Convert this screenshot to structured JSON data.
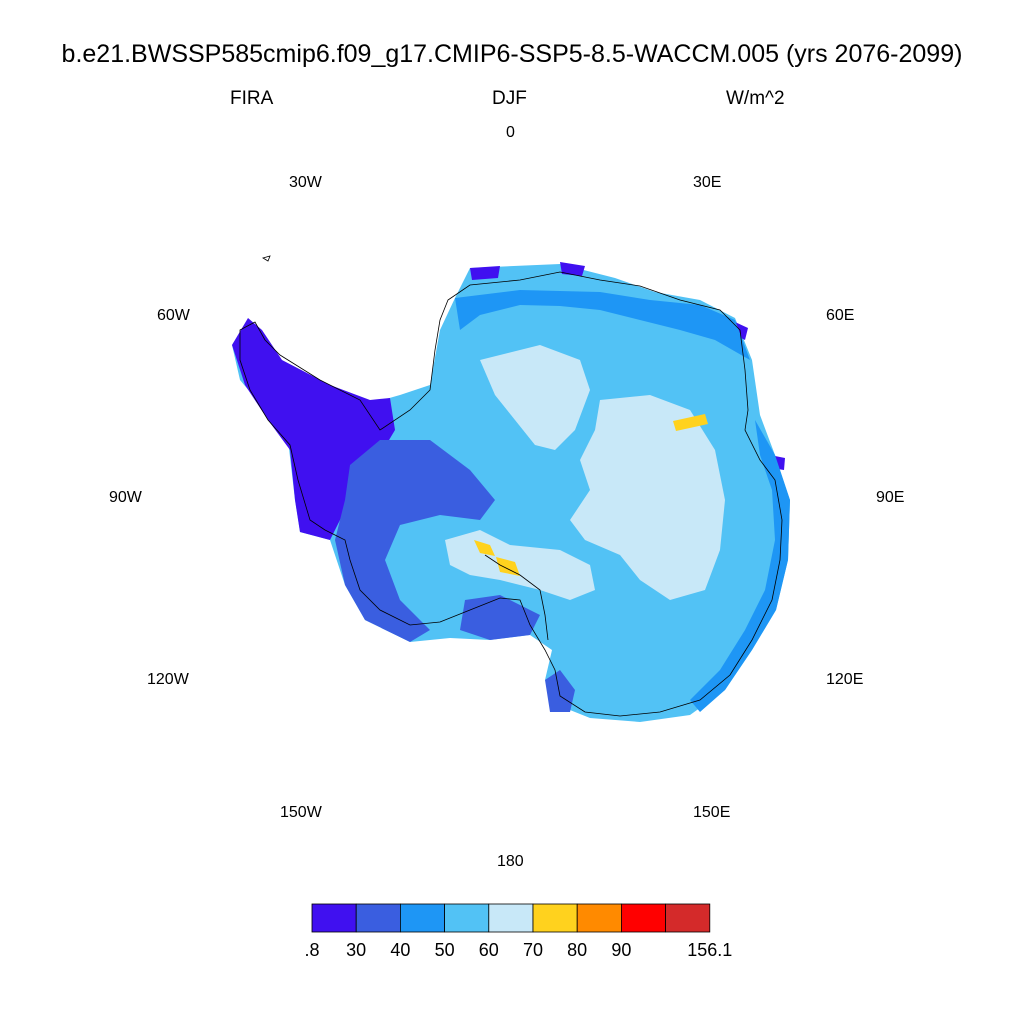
{
  "title": "b.e21.BWSSP585cmip6.f09_g17.CMIP6-SSP5-8.5-WACCM.005 (yrs 2076-2099)",
  "subtitle": {
    "left": "FIRA",
    "center": "DJF",
    "right": "W/m^2"
  },
  "longitude_labels": {
    "lon_0": "0",
    "lon_30e": "30E",
    "lon_60e": "60E",
    "lon_90e": "90E",
    "lon_120e": "120E",
    "lon_150e": "150E",
    "lon_180": "180",
    "lon_150w": "150W",
    "lon_120w": "120W",
    "lon_90w": "90W",
    "lon_60w": "60W",
    "lon_30w": "30W"
  },
  "colorbar": {
    "colors": [
      "#4010f0",
      "#3a5ee0",
      "#1e96f5",
      "#52c2f5",
      "#c8e8f8",
      "#ffd21e",
      "#ff8a00",
      "#ff0000",
      "#d42a2a"
    ],
    "labels": [
      ".8",
      "30",
      "40",
      "50",
      "60",
      "70",
      "80",
      "90",
      "",
      "156.1"
    ]
  },
  "map": {
    "projection": "south-polar-stereographic",
    "variable": "FIRA",
    "season": "DJF",
    "units": "W/m^2"
  }
}
